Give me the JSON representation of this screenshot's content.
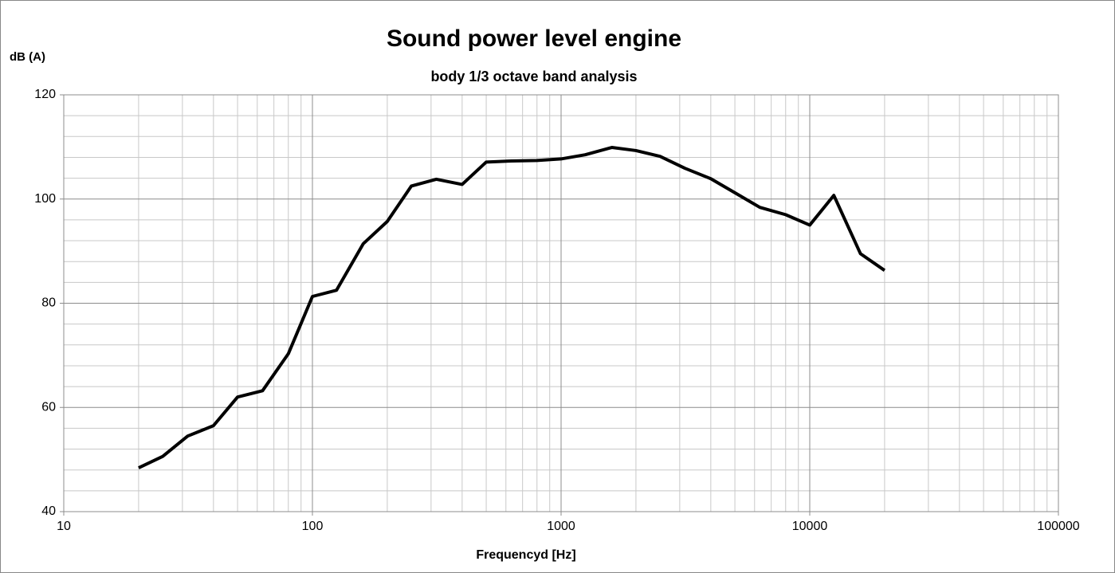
{
  "chart_data": {
    "type": "line",
    "title": "Sound power level engine",
    "subtitle": "body 1/3 octave band analysis",
    "ylabel": "dB (A)",
    "xlabel": "Frequencyd [Hz]",
    "x": [
      20,
      25,
      31.5,
      40,
      50,
      63,
      80,
      100,
      125,
      160,
      200,
      250,
      315,
      400,
      500,
      630,
      800,
      1000,
      1250,
      1600,
      2000,
      2500,
      3150,
      4000,
      5000,
      6300,
      8000,
      10000,
      12500,
      16000,
      20000
    ],
    "values": [
      48.4,
      50.6,
      54.5,
      56.5,
      62.0,
      63.2,
      70.3,
      81.3,
      82.5,
      91.4,
      95.7,
      102.5,
      103.8,
      102.8,
      107.1,
      107.3,
      107.4,
      107.7,
      108.5,
      109.9,
      109.3,
      108.2,
      105.9,
      103.9,
      101.2,
      98.4,
      97.0,
      95.0,
      100.7,
      89.5,
      86.3
    ],
    "color": "#000000",
    "xscale": "log",
    "xlim": [
      10,
      100000
    ],
    "xticks": [
      10,
      100,
      1000,
      10000,
      100000
    ],
    "xminorticks": [
      20,
      30,
      40,
      50,
      60,
      70,
      80,
      90,
      200,
      300,
      400,
      500,
      600,
      700,
      800,
      900,
      2000,
      3000,
      4000,
      5000,
      6000,
      7000,
      8000,
      9000,
      20000,
      30000,
      40000,
      50000,
      60000,
      70000,
      80000,
      90000
    ],
    "ylim": [
      40,
      120
    ],
    "yticks": [
      40,
      60,
      80,
      100,
      120
    ],
    "yminorticks": [
      44,
      48,
      52,
      56,
      64,
      68,
      72,
      76,
      84,
      88,
      92,
      96,
      104,
      108,
      112,
      116
    ],
    "grid": true
  }
}
